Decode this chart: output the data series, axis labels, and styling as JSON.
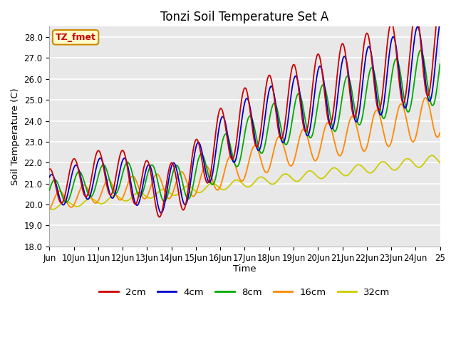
{
  "title": "Tonzi Soil Temperature Set A",
  "xlabel": "Time",
  "ylabel": "Soil Temperature (C)",
  "ylim": [
    18.0,
    28.5
  ],
  "yticks": [
    18.0,
    19.0,
    20.0,
    21.0,
    22.0,
    23.0,
    24.0,
    25.0,
    26.0,
    27.0,
    28.0
  ],
  "xtick_labels": [
    "Jun",
    "10Jun",
    "11Jun",
    "12Jun",
    "13Jun",
    "14Jun",
    "15Jun",
    "16Jun",
    "17Jun",
    "18Jun",
    "19Jun",
    "20Jun",
    "21Jun",
    "22Jun",
    "23Jun",
    "24Jun",
    "25"
  ],
  "legend_labels": [
    "2cm",
    "4cm",
    "8cm",
    "16cm",
    "32cm"
  ],
  "line_colors": [
    "#cc0000",
    "#0000cc",
    "#00aa00",
    "#ff8800",
    "#cccc00"
  ],
  "bg_color": "#e8e8e8",
  "annotation_text": "TZ_fmet",
  "annotation_color": "#cc0000",
  "annotation_bg": "#ffffcc",
  "annotation_border": "#cc8800"
}
